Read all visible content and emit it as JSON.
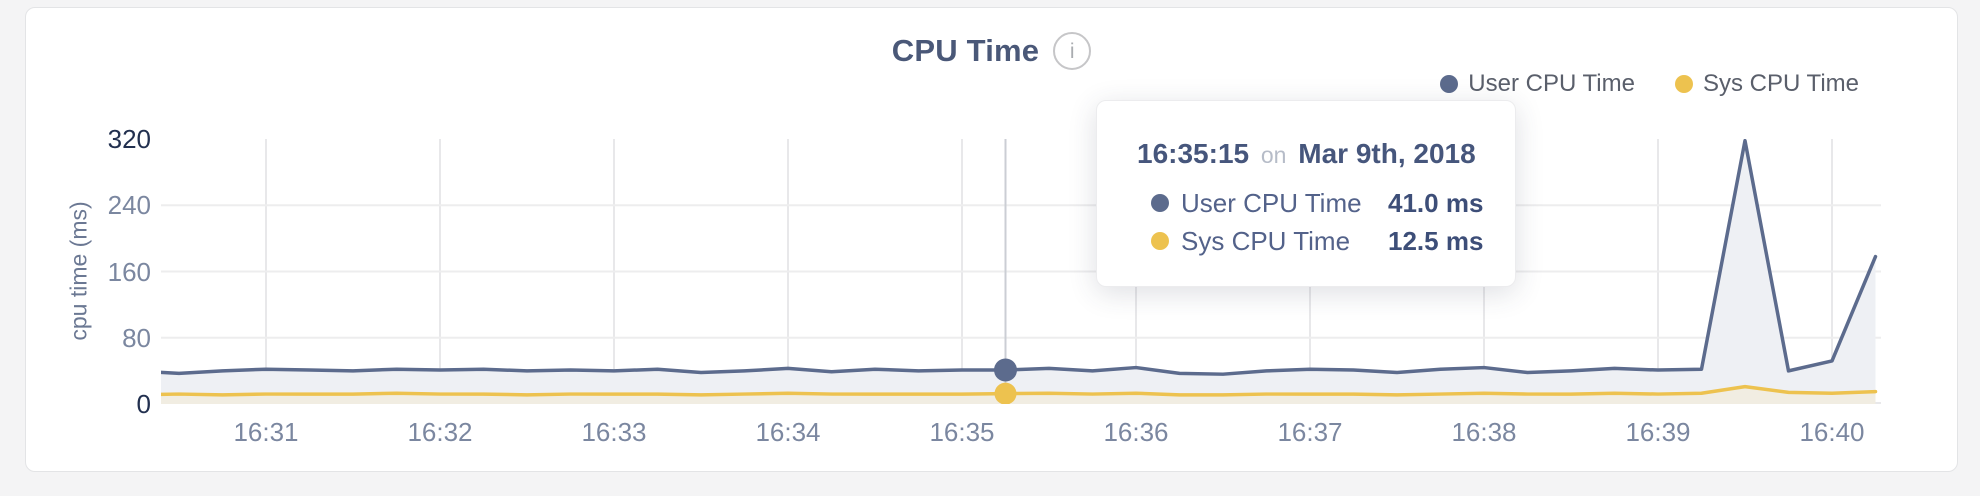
{
  "header": {
    "title": "CPU Time",
    "info_glyph": "i"
  },
  "legend": [
    {
      "label": "User CPU Time",
      "color": "#5c6b8d"
    },
    {
      "label": "Sys CPU Time",
      "color": "#edc24f"
    }
  ],
  "tooltip": {
    "time": "16:35:15",
    "on_word": "on",
    "date": "Mar 9th, 2018",
    "rows": [
      {
        "label": "User CPU Time",
        "value": "41.0 ms",
        "color": "#5c6b8d"
      },
      {
        "label": "Sys CPU Time",
        "value": "12.5 ms",
        "color": "#edc24f"
      }
    ]
  },
  "colors": {
    "page_bg": "#f4f4f5",
    "card_bg": "#ffffff",
    "card_border": "#e3e4e6",
    "user_line": "#5c6b8d",
    "sys_line": "#edc24f",
    "user_fill": "#eef0f4",
    "sys_fill": "#f1ede2",
    "grid_vertical": "#e8e8ea",
    "grid_horizontal": "#ededee",
    "cursor_line": "#cbced4",
    "tick_dark": "#22304f",
    "tick_mid": "#7b87a0"
  },
  "chart_data": {
    "type": "area",
    "title": "CPU Time",
    "xlabel": "",
    "ylabel": "cpu time (ms)",
    "ylim": [
      0,
      320
    ],
    "yticks": [
      0,
      80,
      160,
      240,
      320
    ],
    "yticks_emphasized": [
      0,
      320
    ],
    "xticks": [
      "16:31",
      "16:32",
      "16:33",
      "16:34",
      "16:35",
      "16:36",
      "16:37",
      "16:38",
      "16:39",
      "16:40"
    ],
    "grid": true,
    "legend_position": "top-right",
    "x": [
      "16:30:15",
      "16:30:30",
      "16:30:45",
      "16:31:00",
      "16:31:15",
      "16:31:30",
      "16:31:45",
      "16:32:00",
      "16:32:15",
      "16:32:30",
      "16:32:45",
      "16:33:00",
      "16:33:15",
      "16:33:30",
      "16:33:45",
      "16:34:00",
      "16:34:15",
      "16:34:30",
      "16:34:45",
      "16:35:00",
      "16:35:15",
      "16:35:30",
      "16:35:45",
      "16:36:00",
      "16:36:15",
      "16:36:30",
      "16:36:45",
      "16:37:00",
      "16:37:15",
      "16:37:30",
      "16:37:45",
      "16:38:00",
      "16:38:15",
      "16:38:30",
      "16:38:45",
      "16:39:00",
      "16:39:15",
      "16:39:30",
      "16:39:45",
      "16:40:00",
      "16:40:15"
    ],
    "series": [
      {
        "name": "User CPU Time",
        "unit": "ms",
        "values": [
          40,
          37,
          40,
          42,
          41,
          40,
          42,
          41,
          42,
          40,
          41,
          40,
          42,
          38,
          40,
          43,
          39,
          42,
          40,
          41,
          41,
          43,
          40,
          44,
          37,
          36,
          40,
          42,
          41,
          38,
          42,
          44,
          38,
          40,
          43,
          41,
          42,
          318,
          40,
          52,
          178
        ]
      },
      {
        "name": "Sys CPU Time",
        "unit": "ms",
        "values": [
          11,
          12,
          11,
          12,
          12,
          12,
          13,
          12,
          12,
          11,
          12,
          12,
          12,
          11,
          12,
          13,
          12,
          12,
          12,
          12,
          12.5,
          13,
          12,
          13,
          11,
          11,
          12,
          12,
          12,
          11,
          12,
          13,
          12,
          12,
          13,
          12,
          13,
          21,
          14,
          13,
          15
        ]
      }
    ],
    "highlight": {
      "index": 20,
      "time": "16:35:15",
      "date": "Mar 9th, 2018",
      "user_ms": 41.0,
      "sys_ms": 12.5
    }
  }
}
